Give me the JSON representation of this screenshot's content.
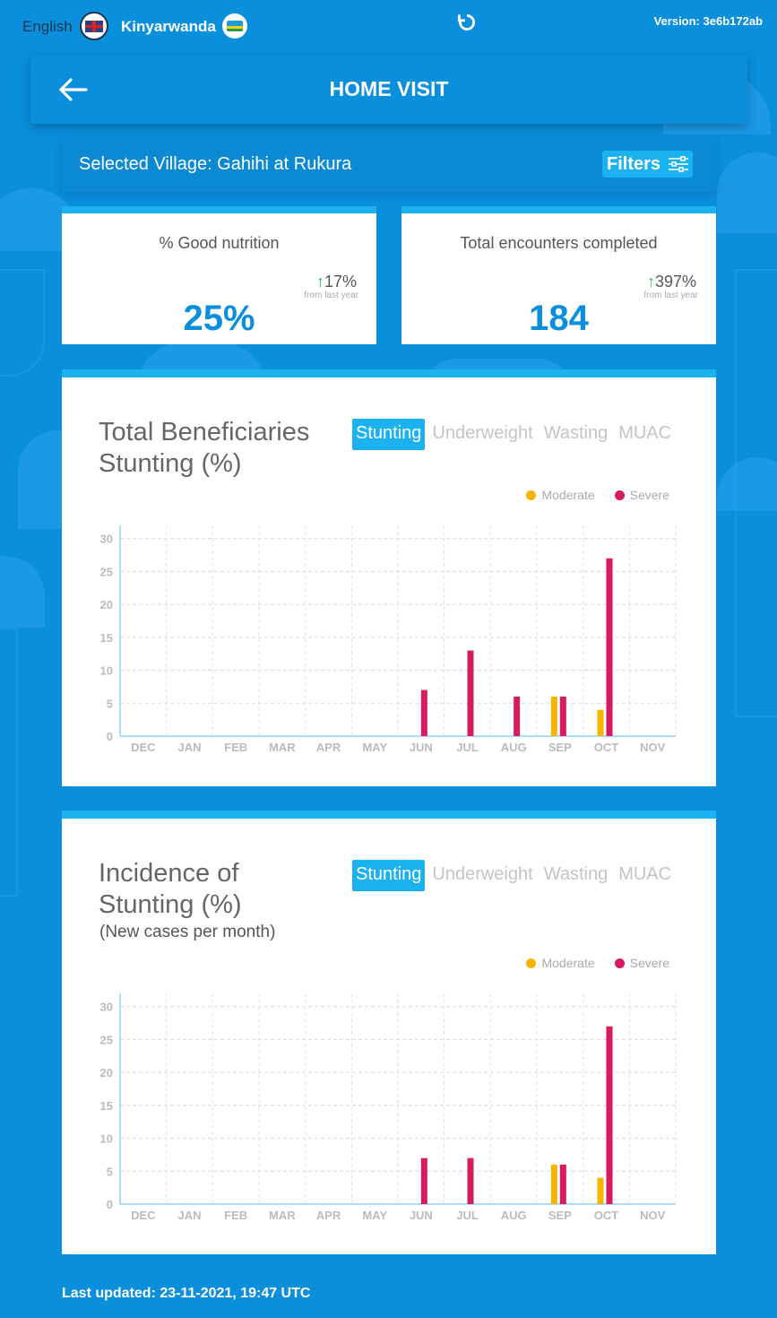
{
  "topbar": {
    "lang_en": "English",
    "lang_rw": "Kinyarwanda",
    "version": "Version: 3e6b172ab"
  },
  "header": {
    "title": "HOME VISIT"
  },
  "village": {
    "text": "Selected Village: Gahihi at Rukura",
    "filters_label": "Filters"
  },
  "stats": [
    {
      "label": "% Good nutrition",
      "change": "17%",
      "sub": "from last year",
      "value": "25%"
    },
    {
      "label": "Total encounters completed",
      "change": "397%",
      "sub": "from last year",
      "value": "184"
    }
  ],
  "tabs": [
    "Stunting",
    "Underweight",
    "Wasting",
    "MUAC"
  ],
  "legend": {
    "moderate": "Moderate",
    "severe": "Severe"
  },
  "colors": {
    "moderate": "#f7b500",
    "severe": "#d81b60",
    "accent": "#1cb2f0",
    "background": "#0a8fdc"
  },
  "charts": [
    {
      "title_line1": "Total Beneficiaries",
      "title_line2": "Stunting (%)",
      "subtitle": ""
    },
    {
      "title_line1": "Incidence of",
      "title_line2": "Stunting (%)",
      "subtitle": "(New cases per month)"
    }
  ],
  "chart_data": [
    {
      "type": "bar",
      "title": "Total Beneficiaries Stunting (%)",
      "categories": [
        "DEC",
        "JAN",
        "FEB",
        "MAR",
        "APR",
        "MAY",
        "JUN",
        "JUL",
        "AUG",
        "SEP",
        "OCT",
        "NOV"
      ],
      "series": [
        {
          "name": "Moderate",
          "values": [
            0,
            0,
            0,
            0,
            0,
            0,
            0,
            0,
            0,
            6,
            4,
            0
          ]
        },
        {
          "name": "Severe",
          "values": [
            0,
            0,
            0,
            0,
            0,
            0,
            7,
            13,
            6,
            6,
            27,
            0
          ]
        }
      ],
      "yticks": [
        0,
        5,
        10,
        15,
        20,
        25,
        30
      ],
      "ylim": [
        0,
        32
      ],
      "legend_position": "top-right",
      "grid": true
    },
    {
      "type": "bar",
      "title": "Incidence of Stunting (%)",
      "subtitle": "(New cases per month)",
      "categories": [
        "DEC",
        "JAN",
        "FEB",
        "MAR",
        "APR",
        "MAY",
        "JUN",
        "JUL",
        "AUG",
        "SEP",
        "OCT",
        "NOV"
      ],
      "series": [
        {
          "name": "Moderate",
          "values": [
            0,
            0,
            0,
            0,
            0,
            0,
            0,
            0,
            0,
            6,
            4,
            0
          ]
        },
        {
          "name": "Severe",
          "values": [
            0,
            0,
            0,
            0,
            0,
            0,
            7,
            7,
            0,
            6,
            27,
            0
          ]
        }
      ],
      "yticks": [
        0,
        5,
        10,
        15,
        20,
        25,
        30
      ],
      "ylim": [
        0,
        32
      ],
      "legend_position": "top-right",
      "grid": true
    }
  ],
  "footer": {
    "last_updated": "Last updated: 23-11-2021, 19:47 UTC"
  }
}
